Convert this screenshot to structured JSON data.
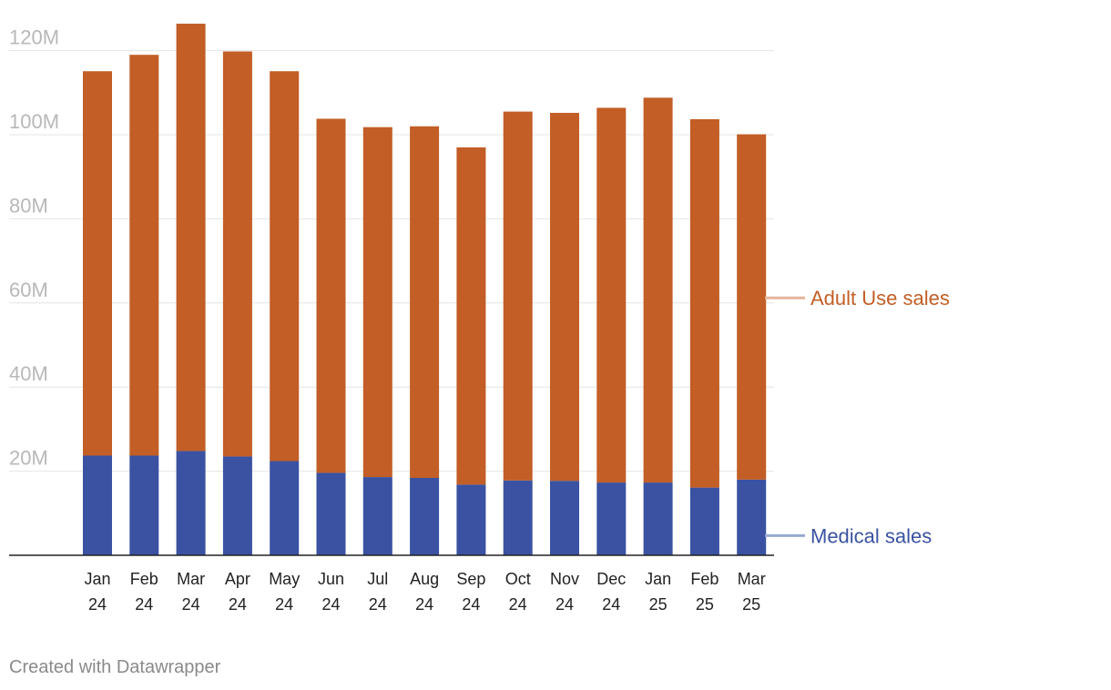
{
  "chart_data": {
    "type": "bar",
    "stacked": true,
    "categories": [
      "Jan 24",
      "Feb 24",
      "Mar 24",
      "Apr 24",
      "May 24",
      "Jun 24",
      "Jul 24",
      "Aug 24",
      "Sep 24",
      "Oct 24",
      "Nov 24",
      "Dec 24",
      "Jan 25",
      "Feb 25",
      "Mar 25"
    ],
    "category_lines": [
      [
        "Jan",
        "24"
      ],
      [
        "Feb",
        "24"
      ],
      [
        "Mar",
        "24"
      ],
      [
        "Apr",
        "24"
      ],
      [
        "May",
        "24"
      ],
      [
        "Jun",
        "24"
      ],
      [
        "Jul",
        "24"
      ],
      [
        "Aug",
        "24"
      ],
      [
        "Sep",
        "24"
      ],
      [
        "Oct",
        "24"
      ],
      [
        "Nov",
        "24"
      ],
      [
        "Dec",
        "24"
      ],
      [
        "Jan",
        "25"
      ],
      [
        "Feb",
        "25"
      ],
      [
        "Mar",
        "25"
      ]
    ],
    "series": [
      {
        "name": "Medical sales",
        "color": "#3a52a1",
        "values": [
          23.7,
          23.7,
          24.8,
          23.5,
          22.4,
          19.6,
          18.6,
          18.4,
          16.8,
          17.8,
          17.7,
          17.3,
          17.3,
          16.1,
          18.0
        ]
      },
      {
        "name": "Adult Use sales",
        "color": "#c25e26",
        "values": [
          91.4,
          95.3,
          101.6,
          96.3,
          92.7,
          84.2,
          83.2,
          83.6,
          80.2,
          87.7,
          87.5,
          89.1,
          91.5,
          87.6,
          82.1
        ]
      }
    ],
    "y_ticks": [
      20,
      40,
      60,
      80,
      100,
      120
    ],
    "y_tick_labels": [
      "20M",
      "40M",
      "60M",
      "80M",
      "100M",
      "120M"
    ],
    "ylim": [
      0,
      125
    ],
    "grid": true,
    "legend_position": "right, inline labels",
    "title": "",
    "xlabel": "",
    "ylabel": ""
  },
  "legend": {
    "adult_use": "Adult Use sales",
    "medical": "Medical sales",
    "adult_use_line_color": "#e6b49a",
    "medical_line_color": "#9aa8d4"
  },
  "footer": {
    "credit": "Created with Datawrapper"
  }
}
